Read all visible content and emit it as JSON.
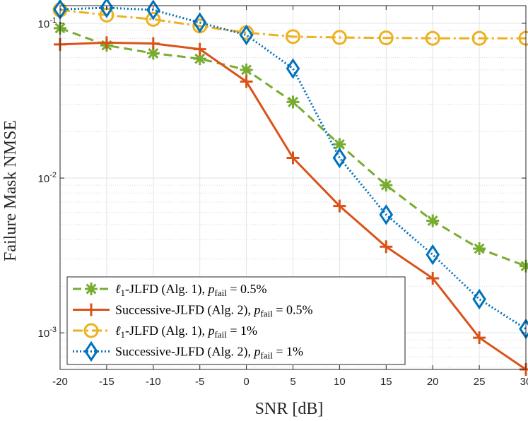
{
  "chart_data": {
    "type": "line",
    "xlabel": "SNR [dB]",
    "ylabel": "Failure Mask NMSE",
    "yscale": "log",
    "xlim": [
      -20,
      30
    ],
    "ylim": [
      0.00058,
      0.13
    ],
    "x": [
      -20,
      -15,
      -10,
      -5,
      0,
      5,
      10,
      15,
      20,
      25,
      30
    ],
    "x_tick_labels": [
      "-20",
      "-15",
      "-10",
      "-5",
      "0",
      "5",
      "10",
      "15",
      "20",
      "25",
      "30"
    ],
    "y_ticks": [
      {
        "value": 0.001,
        "base": "10",
        "exp": "-3"
      },
      {
        "value": 0.01,
        "base": "10",
        "exp": "-2"
      },
      {
        "value": 0.1,
        "base": "10",
        "exp": "-1"
      }
    ],
    "grid": true,
    "legend_position": "bottom-left",
    "series": [
      {
        "name": "ℓ1-JLFD (Alg. 1), p_fail = 0.5%",
        "legend_pre": "ℓ",
        "legend_pre_sub": "1",
        "legend_mid": "-JLFD (Alg. 1), ",
        "legend_p": "p",
        "legend_p_sub": "fail",
        "legend_post": " = 0.5%",
        "color": "#77AC30",
        "dash": "12,7",
        "marker": "asterisk",
        "values": [
          0.093,
          0.072,
          0.064,
          0.059,
          0.05,
          0.031,
          0.0165,
          0.009,
          0.0053,
          0.0035,
          0.0027
        ]
      },
      {
        "name": "Successive-JLFD (Alg. 2), p_fail = 0.5%",
        "legend_pre": "",
        "legend_pre_sub": "",
        "legend_mid": "Successive-JLFD (Alg. 2), ",
        "legend_p": "p",
        "legend_p_sub": "fail",
        "legend_post": " = 0.5%",
        "color": "#D95319",
        "dash": "",
        "marker": "plus",
        "values": [
          0.073,
          0.075,
          0.074,
          0.068,
          0.042,
          0.0135,
          0.0066,
          0.0036,
          0.00225,
          0.00093,
          0.00058
        ]
      },
      {
        "name": "ℓ1-JLFD (Alg. 1), p_fail = 1%",
        "legend_pre": "ℓ",
        "legend_pre_sub": "1",
        "legend_mid": "-JLFD (Alg. 1), ",
        "legend_p": "p",
        "legend_p_sub": "fail",
        "legend_post": " = 1%",
        "color": "#EDB120",
        "dash": "14,5,3,5",
        "marker": "circle",
        "values": [
          0.122,
          0.113,
          0.106,
          0.096,
          0.087,
          0.082,
          0.081,
          0.0805,
          0.08,
          0.08,
          0.08
        ]
      },
      {
        "name": "Successive-JLFD (Alg. 2), p_fail = 1%",
        "legend_pre": "",
        "legend_pre_sub": "",
        "legend_mid": "Successive-JLFD (Alg. 2), ",
        "legend_p": "p",
        "legend_p_sub": "fail",
        "legend_post": " = 1%",
        "color": "#0072BD",
        "dash": "2,3",
        "marker": "diamond",
        "values": [
          0.123,
          0.126,
          0.122,
          0.101,
          0.084,
          0.051,
          0.0135,
          0.0058,
          0.0032,
          0.00165,
          0.00106
        ]
      }
    ]
  }
}
